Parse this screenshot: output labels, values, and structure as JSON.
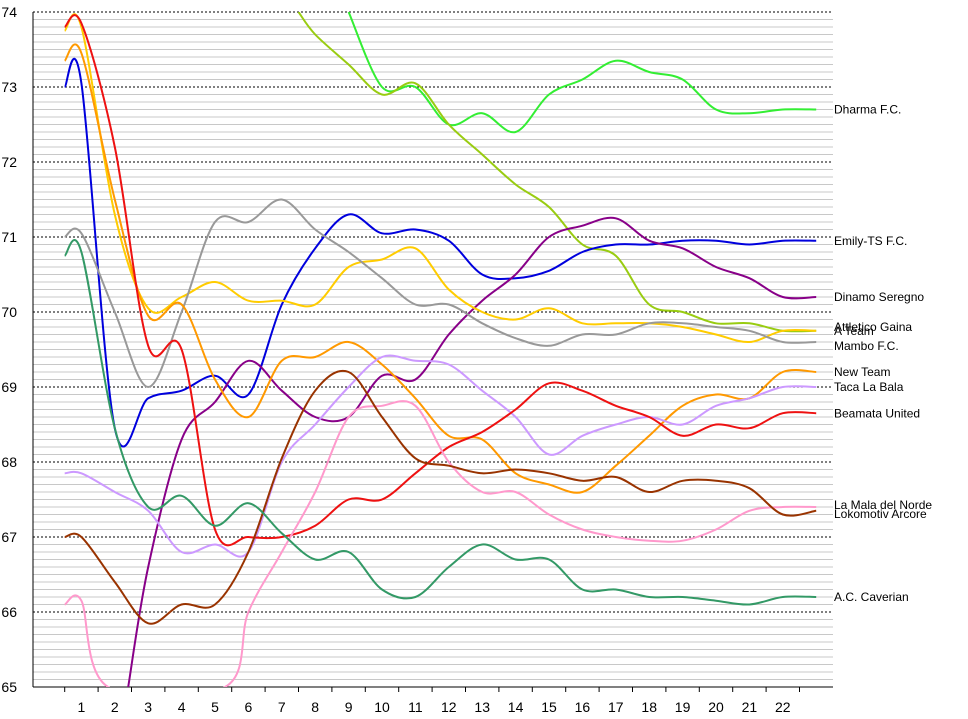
{
  "chart_data": {
    "type": "line",
    "title": "",
    "xlabel": "",
    "ylabel": "",
    "ylim": [
      65,
      74
    ],
    "y_ticks": [
      "65",
      "66",
      "67",
      "68",
      "69",
      "70",
      "71",
      "72",
      "73",
      "74"
    ],
    "x_ticks": [
      "1",
      "2",
      "3",
      "4",
      "5",
      "6",
      "7",
      "8",
      "9",
      "10",
      "11",
      "12",
      "13",
      "14",
      "15",
      "16",
      "17",
      "18",
      "19",
      "20",
      "21",
      "22"
    ],
    "grid": "horizontal (major dashed at each integer, minor lines every 0.1)",
    "legend": "series names printed at the right end of each line",
    "series": [
      {
        "name": "Dharma F.C.",
        "color": "#33ee33",
        "points": [
          [
            9,
            74.0
          ],
          [
            10,
            73.0
          ],
          [
            11,
            73.0
          ],
          [
            12,
            72.5
          ],
          [
            13,
            72.65
          ],
          [
            14,
            72.4
          ],
          [
            15,
            72.9
          ],
          [
            16,
            73.1
          ],
          [
            17,
            73.35
          ],
          [
            18,
            73.2
          ],
          [
            19,
            73.1
          ],
          [
            20,
            72.7
          ],
          [
            21,
            72.65
          ],
          [
            22,
            72.7
          ],
          [
            23,
            72.7
          ]
        ]
      },
      {
        "name": "Attletico Gaina",
        "color": "#99cc11",
        "points": [
          [
            7.5,
            74.0
          ],
          [
            8,
            73.7
          ],
          [
            9,
            73.3
          ],
          [
            10,
            72.9
          ],
          [
            11,
            73.05
          ],
          [
            12,
            72.5
          ],
          [
            13,
            72.1
          ],
          [
            14,
            71.7
          ],
          [
            15,
            71.4
          ],
          [
            16,
            70.9
          ],
          [
            17,
            70.75
          ],
          [
            18,
            70.1
          ],
          [
            19,
            70.0
          ],
          [
            20,
            69.85
          ],
          [
            21,
            69.85
          ],
          [
            22,
            69.75
          ],
          [
            23,
            69.75
          ]
        ]
      },
      {
        "name": "Emily-TS F.C.",
        "color": "#0000dd",
        "points": [
          [
            0.5,
            73.0
          ],
          [
            1,
            73.05
          ],
          [
            2,
            68.45
          ],
          [
            3,
            68.85
          ],
          [
            4,
            68.95
          ],
          [
            5,
            69.15
          ],
          [
            6,
            68.9
          ],
          [
            7,
            70.1
          ],
          [
            8,
            70.85
          ],
          [
            9,
            71.3
          ],
          [
            10,
            71.05
          ],
          [
            11,
            71.1
          ],
          [
            12,
            70.95
          ],
          [
            13,
            70.5
          ],
          [
            14,
            70.45
          ],
          [
            15,
            70.55
          ],
          [
            16,
            70.8
          ],
          [
            17,
            70.9
          ],
          [
            18,
            70.9
          ],
          [
            19,
            70.95
          ],
          [
            20,
            70.95
          ],
          [
            21,
            70.9
          ],
          [
            22,
            70.95
          ],
          [
            23,
            70.95
          ]
        ]
      },
      {
        "name": "Dinamo Seregno",
        "color": "#880088",
        "points": [
          [
            2.4,
            65.0
          ],
          [
            3,
            66.6
          ],
          [
            4,
            68.3
          ],
          [
            5,
            68.8
          ],
          [
            6,
            69.35
          ],
          [
            7,
            68.95
          ],
          [
            8,
            68.6
          ],
          [
            9,
            68.6
          ],
          [
            10,
            69.15
          ],
          [
            11,
            69.1
          ],
          [
            12,
            69.7
          ],
          [
            13,
            70.15
          ],
          [
            14,
            70.5
          ],
          [
            15,
            71.0
          ],
          [
            16,
            71.15
          ],
          [
            17,
            71.25
          ],
          [
            18,
            70.95
          ],
          [
            19,
            70.85
          ],
          [
            20,
            70.6
          ],
          [
            21,
            70.45
          ],
          [
            22,
            70.2
          ],
          [
            23,
            70.2
          ]
        ]
      },
      {
        "name": "A Team",
        "color": "#ffcc00",
        "points": [
          [
            0.5,
            73.75
          ],
          [
            1,
            73.8
          ],
          [
            2,
            71.3
          ],
          [
            3,
            70.05
          ],
          [
            4,
            70.2
          ],
          [
            5,
            70.4
          ],
          [
            6,
            70.15
          ],
          [
            7,
            70.15
          ],
          [
            8,
            70.1
          ],
          [
            9,
            70.6
          ],
          [
            10,
            70.7
          ],
          [
            11,
            70.85
          ],
          [
            12,
            70.3
          ],
          [
            13,
            70.0
          ],
          [
            14,
            69.9
          ],
          [
            15,
            70.05
          ],
          [
            16,
            69.85
          ],
          [
            17,
            69.85
          ],
          [
            18,
            69.85
          ],
          [
            19,
            69.8
          ],
          [
            20,
            69.7
          ],
          [
            21,
            69.6
          ],
          [
            22,
            69.75
          ],
          [
            23,
            69.75
          ]
        ]
      },
      {
        "name": "Mambo F.C.",
        "color": "#999999",
        "points": [
          [
            0.5,
            71.0
          ],
          [
            1,
            71.05
          ],
          [
            2,
            70.0
          ],
          [
            3,
            69.0
          ],
          [
            4,
            70.0
          ],
          [
            5,
            71.2
          ],
          [
            6,
            71.2
          ],
          [
            7,
            71.5
          ],
          [
            8,
            71.1
          ],
          [
            9,
            70.8
          ],
          [
            10,
            70.45
          ],
          [
            11,
            70.1
          ],
          [
            12,
            70.1
          ],
          [
            13,
            69.85
          ],
          [
            14,
            69.65
          ],
          [
            15,
            69.55
          ],
          [
            16,
            69.7
          ],
          [
            17,
            69.7
          ],
          [
            18,
            69.85
          ],
          [
            19,
            69.85
          ],
          [
            20,
            69.8
          ],
          [
            21,
            69.75
          ],
          [
            22,
            69.6
          ],
          [
            23,
            69.6
          ]
        ]
      },
      {
        "name": "New Team",
        "color": "#ff9900",
        "points": [
          [
            0.5,
            73.35
          ],
          [
            1,
            73.45
          ],
          [
            2,
            71.5
          ],
          [
            3,
            69.95
          ],
          [
            4,
            70.1
          ],
          [
            5,
            69.1
          ],
          [
            6,
            68.6
          ],
          [
            7,
            69.35
          ],
          [
            8,
            69.4
          ],
          [
            9,
            69.6
          ],
          [
            10,
            69.3
          ],
          [
            11,
            68.85
          ],
          [
            12,
            68.35
          ],
          [
            13,
            68.3
          ],
          [
            14,
            67.85
          ],
          [
            15,
            67.7
          ],
          [
            16,
            67.6
          ],
          [
            17,
            67.95
          ],
          [
            18,
            68.35
          ],
          [
            19,
            68.75
          ],
          [
            20,
            68.9
          ],
          [
            21,
            68.85
          ],
          [
            22,
            69.2
          ],
          [
            23,
            69.2
          ]
        ]
      },
      {
        "name": "Taca La Bala",
        "color": "#cc99ff",
        "points": [
          [
            0.5,
            67.85
          ],
          [
            1,
            67.85
          ],
          [
            2,
            67.6
          ],
          [
            3,
            67.35
          ],
          [
            4,
            66.8
          ],
          [
            5,
            66.9
          ],
          [
            6,
            66.8
          ],
          [
            7,
            68.0
          ],
          [
            8,
            68.5
          ],
          [
            9,
            69.0
          ],
          [
            10,
            69.4
          ],
          [
            11,
            69.35
          ],
          [
            12,
            69.3
          ],
          [
            13,
            68.95
          ],
          [
            14,
            68.6
          ],
          [
            15,
            68.1
          ],
          [
            16,
            68.35
          ],
          [
            17,
            68.5
          ],
          [
            18,
            68.6
          ],
          [
            19,
            68.5
          ],
          [
            20,
            68.75
          ],
          [
            21,
            68.85
          ],
          [
            22,
            69.0
          ],
          [
            23,
            69.0
          ]
        ]
      },
      {
        "name": "Beamata United",
        "color": "#ee1111",
        "points": [
          [
            0.5,
            73.8
          ],
          [
            1,
            73.85
          ],
          [
            2,
            72.2
          ],
          [
            3,
            69.55
          ],
          [
            4,
            69.5
          ],
          [
            5,
            67.1
          ],
          [
            6,
            67.0
          ],
          [
            7,
            67.0
          ],
          [
            8,
            67.15
          ],
          [
            9,
            67.5
          ],
          [
            10,
            67.5
          ],
          [
            11,
            67.85
          ],
          [
            12,
            68.2
          ],
          [
            13,
            68.4
          ],
          [
            14,
            68.7
          ],
          [
            15,
            69.05
          ],
          [
            16,
            68.95
          ],
          [
            17,
            68.75
          ],
          [
            18,
            68.6
          ],
          [
            19,
            68.35
          ],
          [
            20,
            68.5
          ],
          [
            21,
            68.45
          ],
          [
            22,
            68.65
          ],
          [
            23,
            68.65
          ]
        ]
      },
      {
        "name": "La Mala del Norde",
        "color": "#ff99cc",
        "points": [
          [
            0.5,
            66.1
          ],
          [
            1,
            66.15
          ],
          [
            1.8,
            65.0
          ],
          [
            5.3,
            65.0
          ],
          [
            6,
            66.0
          ],
          [
            7,
            66.8
          ],
          [
            8,
            67.6
          ],
          [
            9,
            68.6
          ],
          [
            10,
            68.75
          ],
          [
            11,
            68.75
          ],
          [
            12,
            68.0
          ],
          [
            13,
            67.6
          ],
          [
            14,
            67.6
          ],
          [
            15,
            67.3
          ],
          [
            16,
            67.1
          ],
          [
            17,
            67.0
          ],
          [
            18,
            66.95
          ],
          [
            19,
            66.95
          ],
          [
            20,
            67.1
          ],
          [
            21,
            67.35
          ],
          [
            22,
            67.4
          ],
          [
            23,
            67.4
          ]
        ]
      },
      {
        "name": "Lokomotiv Arcore",
        "color": "#993300",
        "points": [
          [
            0.5,
            67.0
          ],
          [
            1,
            67.0
          ],
          [
            2,
            66.4
          ],
          [
            3,
            65.85
          ],
          [
            4,
            66.1
          ],
          [
            5,
            66.1
          ],
          [
            6,
            66.8
          ],
          [
            7,
            68.05
          ],
          [
            8,
            68.95
          ],
          [
            9,
            69.2
          ],
          [
            10,
            68.6
          ],
          [
            11,
            68.05
          ],
          [
            12,
            67.95
          ],
          [
            13,
            67.85
          ],
          [
            14,
            67.9
          ],
          [
            15,
            67.85
          ],
          [
            16,
            67.75
          ],
          [
            17,
            67.8
          ],
          [
            18,
            67.6
          ],
          [
            19,
            67.75
          ],
          [
            20,
            67.75
          ],
          [
            21,
            67.65
          ],
          [
            22,
            67.3
          ],
          [
            23,
            67.35
          ]
        ]
      },
      {
        "name": "A.C. Caverian",
        "color": "#339966",
        "points": [
          [
            0.5,
            70.75
          ],
          [
            1,
            70.8
          ],
          [
            2,
            68.45
          ],
          [
            3,
            67.4
          ],
          [
            4,
            67.55
          ],
          [
            5,
            67.15
          ],
          [
            6,
            67.45
          ],
          [
            7,
            67.05
          ],
          [
            8,
            66.7
          ],
          [
            9,
            66.8
          ],
          [
            10,
            66.3
          ],
          [
            11,
            66.2
          ],
          [
            12,
            66.6
          ],
          [
            13,
            66.9
          ],
          [
            14,
            66.7
          ],
          [
            15,
            66.7
          ],
          [
            16,
            66.3
          ],
          [
            17,
            66.3
          ],
          [
            18,
            66.2
          ],
          [
            19,
            66.2
          ],
          [
            20,
            66.15
          ],
          [
            21,
            66.1
          ],
          [
            22,
            66.2
          ],
          [
            23,
            66.2
          ]
        ]
      }
    ]
  }
}
